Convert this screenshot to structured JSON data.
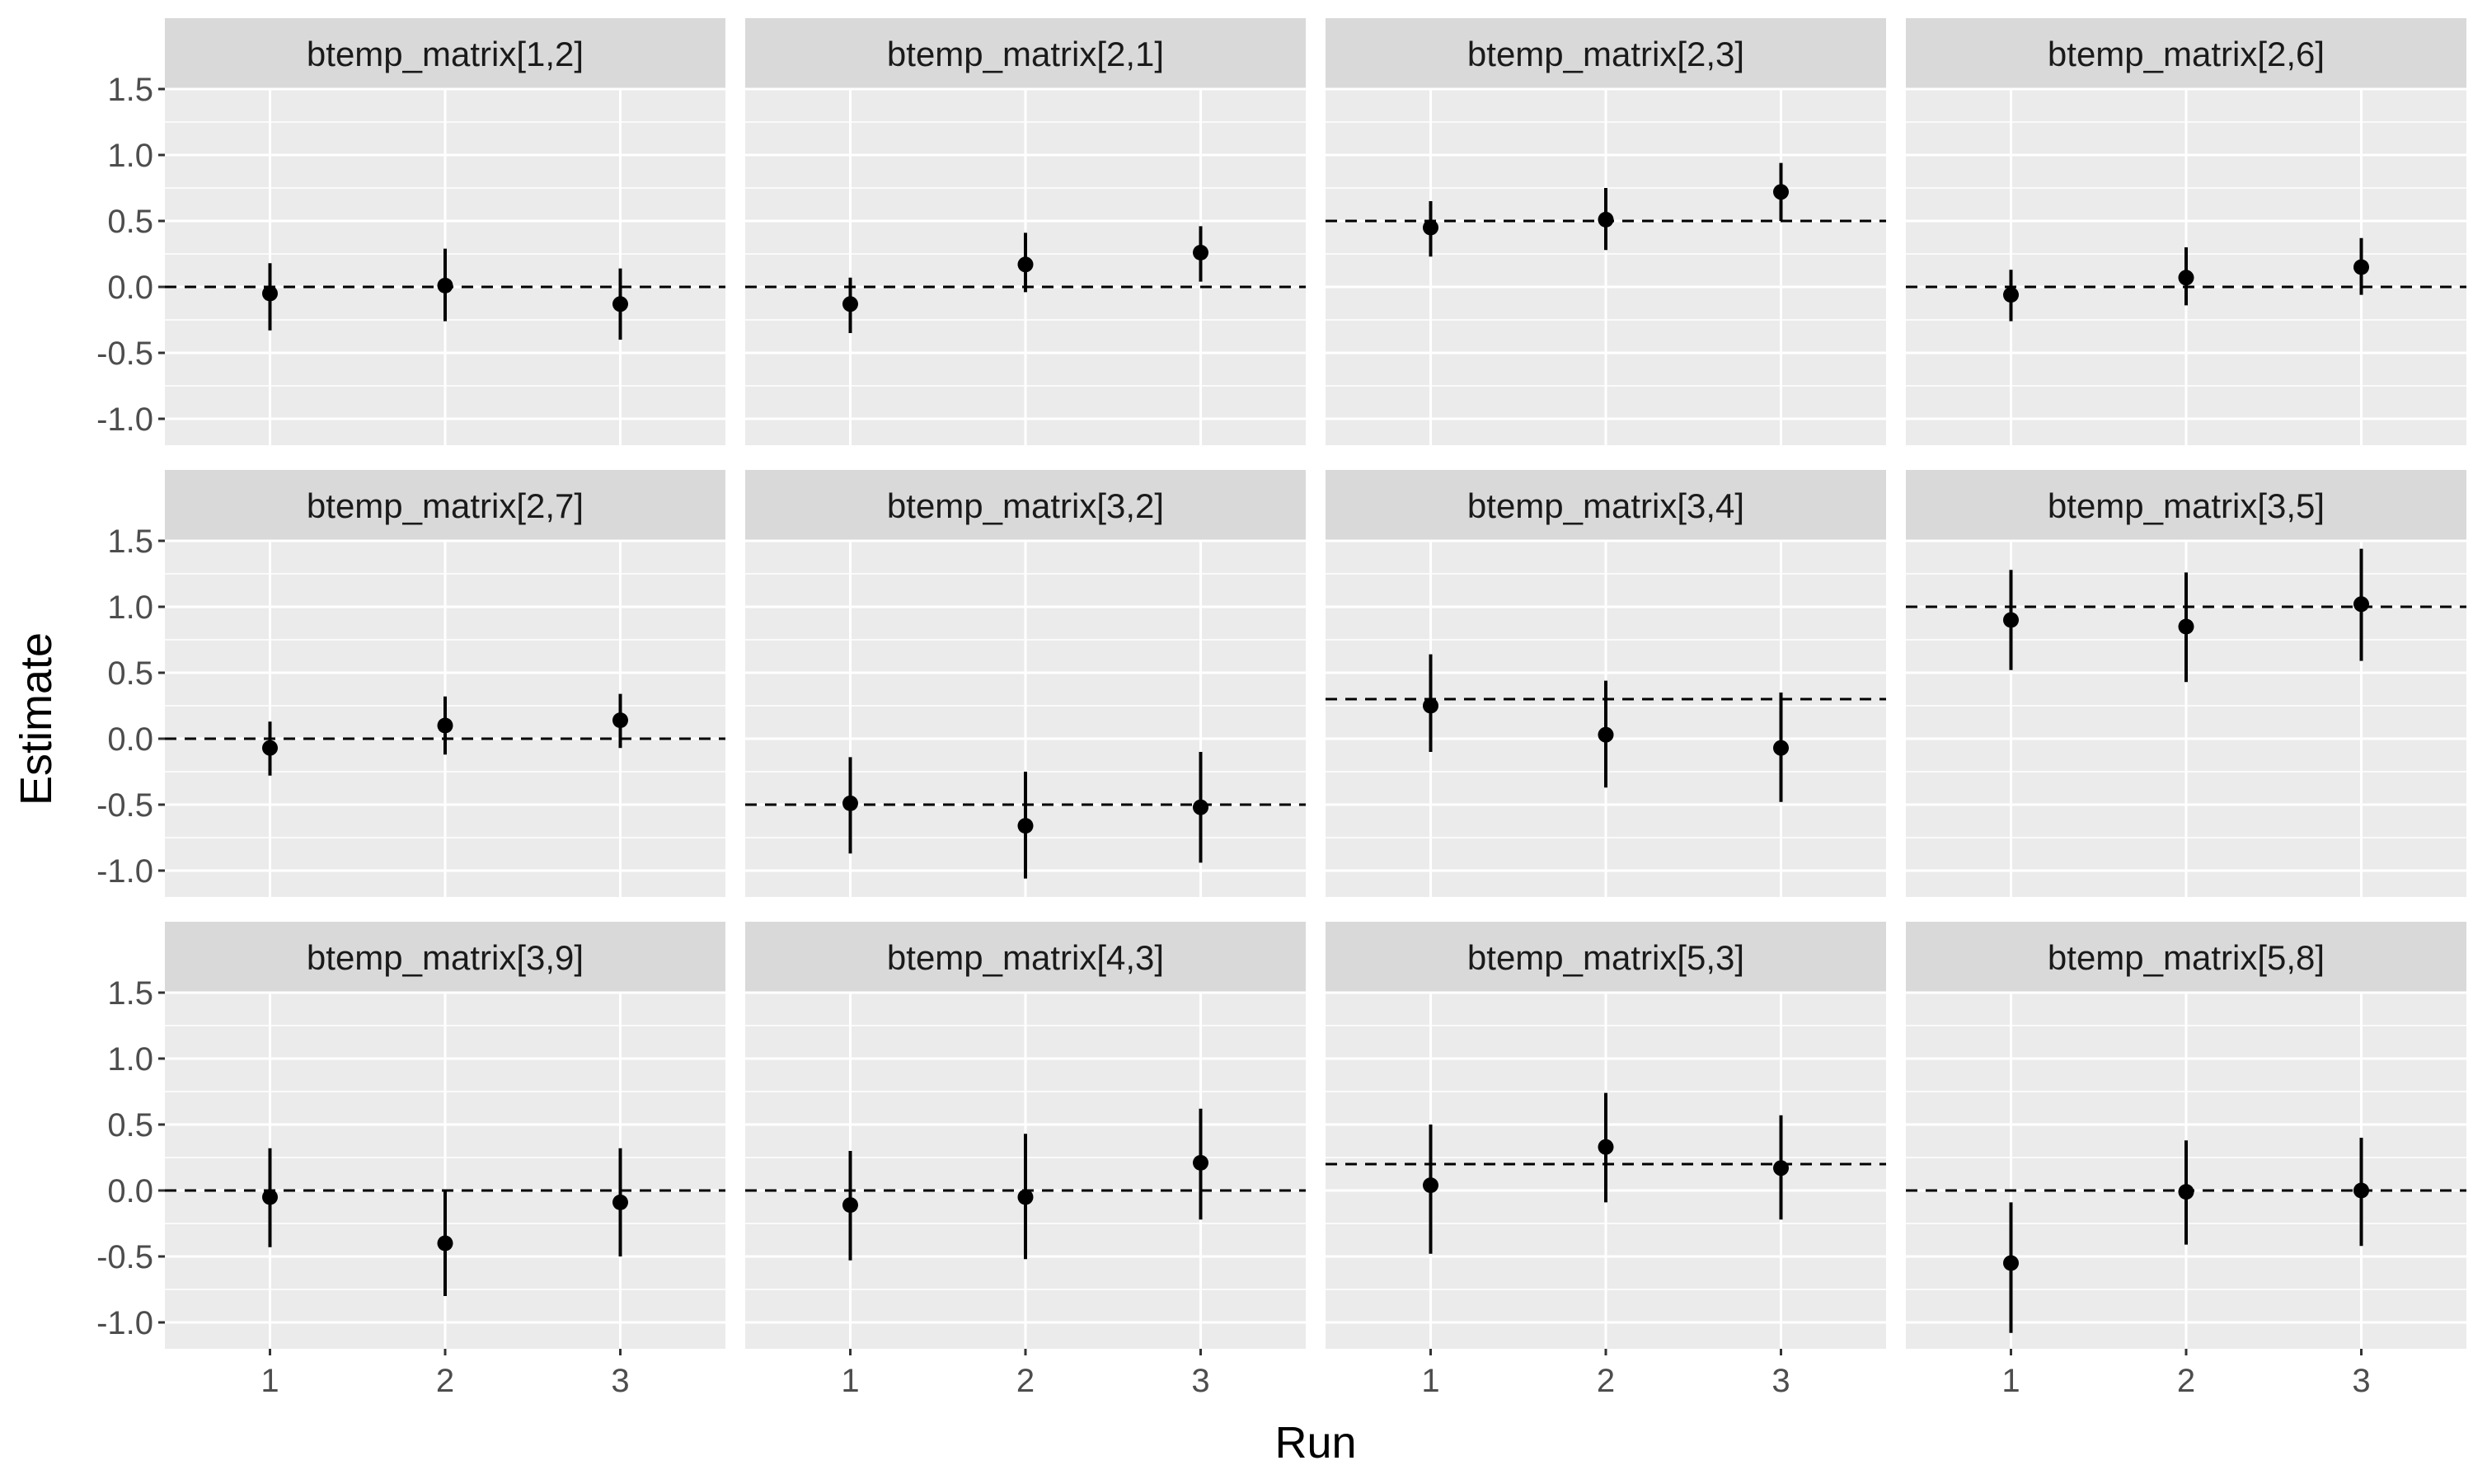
{
  "chart_data": {
    "type": "scatter",
    "facet": "pointrange",
    "xlabel": "Run",
    "ylabel": "Estimate",
    "x_ticks": [
      1,
      2,
      3
    ],
    "y_ticks": [
      1.5,
      1.0,
      0.5,
      0.0,
      -0.5,
      -1.0
    ],
    "y_tick_labels": [
      "1.5",
      "1.0",
      "0.5",
      "0.0",
      "-0.5",
      "-1.0"
    ],
    "xlim": [
      0.4,
      3.6
    ],
    "ylim": [
      -1.2,
      1.5
    ],
    "grid": true,
    "colors": {
      "panel": "#ebebeb",
      "strip": "#d9d9d9",
      "grid": "#ffffff",
      "point": "#000000",
      "reference_line": "#000000"
    },
    "panels": [
      {
        "title": "btemp_matrix[1,2]",
        "reference": 0.0,
        "points": [
          {
            "x": 1,
            "y": -0.05,
            "lo": -0.33,
            "hi": 0.18
          },
          {
            "x": 2,
            "y": 0.01,
            "lo": -0.26,
            "hi": 0.29
          },
          {
            "x": 3,
            "y": -0.13,
            "lo": -0.4,
            "hi": 0.14
          }
        ]
      },
      {
        "title": "btemp_matrix[2,1]",
        "reference": 0.0,
        "points": [
          {
            "x": 1,
            "y": -0.13,
            "lo": -0.35,
            "hi": 0.07
          },
          {
            "x": 2,
            "y": 0.17,
            "lo": -0.04,
            "hi": 0.41
          },
          {
            "x": 3,
            "y": 0.26,
            "lo": 0.04,
            "hi": 0.46
          }
        ]
      },
      {
        "title": "btemp_matrix[2,3]",
        "reference": 0.5,
        "points": [
          {
            "x": 1,
            "y": 0.45,
            "lo": 0.23,
            "hi": 0.65
          },
          {
            "x": 2,
            "y": 0.51,
            "lo": 0.28,
            "hi": 0.75
          },
          {
            "x": 3,
            "y": 0.72,
            "lo": 0.5,
            "hi": 0.94
          }
        ]
      },
      {
        "title": "btemp_matrix[2,6]",
        "reference": 0.0,
        "points": [
          {
            "x": 1,
            "y": -0.06,
            "lo": -0.26,
            "hi": 0.13
          },
          {
            "x": 2,
            "y": 0.07,
            "lo": -0.14,
            "hi": 0.3
          },
          {
            "x": 3,
            "y": 0.15,
            "lo": -0.06,
            "hi": 0.37
          }
        ]
      },
      {
        "title": "btemp_matrix[2,7]",
        "reference": 0.0,
        "points": [
          {
            "x": 1,
            "y": -0.07,
            "lo": -0.28,
            "hi": 0.13
          },
          {
            "x": 2,
            "y": 0.1,
            "lo": -0.12,
            "hi": 0.32
          },
          {
            "x": 3,
            "y": 0.14,
            "lo": -0.07,
            "hi": 0.34
          }
        ]
      },
      {
        "title": "btemp_matrix[3,2]",
        "reference": -0.5,
        "points": [
          {
            "x": 1,
            "y": -0.49,
            "lo": -0.87,
            "hi": -0.14
          },
          {
            "x": 2,
            "y": -0.66,
            "lo": -1.06,
            "hi": -0.25
          },
          {
            "x": 3,
            "y": -0.52,
            "lo": -0.94,
            "hi": -0.1
          }
        ]
      },
      {
        "title": "btemp_matrix[3,4]",
        "reference": 0.3,
        "points": [
          {
            "x": 1,
            "y": 0.25,
            "lo": -0.1,
            "hi": 0.64
          },
          {
            "x": 2,
            "y": 0.03,
            "lo": -0.37,
            "hi": 0.44
          },
          {
            "x": 3,
            "y": -0.07,
            "lo": -0.48,
            "hi": 0.35
          }
        ]
      },
      {
        "title": "btemp_matrix[3,5]",
        "reference": 1.0,
        "points": [
          {
            "x": 1,
            "y": 0.9,
            "lo": 0.52,
            "hi": 1.28
          },
          {
            "x": 2,
            "y": 0.85,
            "lo": 0.43,
            "hi": 1.26
          },
          {
            "x": 3,
            "y": 1.02,
            "lo": 0.59,
            "hi": 1.44
          }
        ]
      },
      {
        "title": "btemp_matrix[3,9]",
        "reference": 0.0,
        "points": [
          {
            "x": 1,
            "y": -0.05,
            "lo": -0.43,
            "hi": 0.32
          },
          {
            "x": 2,
            "y": -0.4,
            "lo": -0.8,
            "hi": 0.0
          },
          {
            "x": 3,
            "y": -0.09,
            "lo": -0.5,
            "hi": 0.32
          }
        ]
      },
      {
        "title": "btemp_matrix[4,3]",
        "reference": 0.0,
        "points": [
          {
            "x": 1,
            "y": -0.11,
            "lo": -0.53,
            "hi": 0.3
          },
          {
            "x": 2,
            "y": -0.05,
            "lo": -0.52,
            "hi": 0.43
          },
          {
            "x": 3,
            "y": 0.21,
            "lo": -0.22,
            "hi": 0.62
          }
        ]
      },
      {
        "title": "btemp_matrix[5,3]",
        "reference": 0.2,
        "points": [
          {
            "x": 1,
            "y": 0.04,
            "lo": -0.48,
            "hi": 0.5
          },
          {
            "x": 2,
            "y": 0.33,
            "lo": -0.09,
            "hi": 0.74
          },
          {
            "x": 3,
            "y": 0.17,
            "lo": -0.22,
            "hi": 0.57
          }
        ]
      },
      {
        "title": "btemp_matrix[5,8]",
        "reference": 0.0,
        "points": [
          {
            "x": 1,
            "y": -0.55,
            "lo": -1.08,
            "hi": -0.09
          },
          {
            "x": 2,
            "y": -0.01,
            "lo": -0.41,
            "hi": 0.38
          },
          {
            "x": 3,
            "y": 0.0,
            "lo": -0.42,
            "hi": 0.4
          }
        ]
      }
    ]
  }
}
